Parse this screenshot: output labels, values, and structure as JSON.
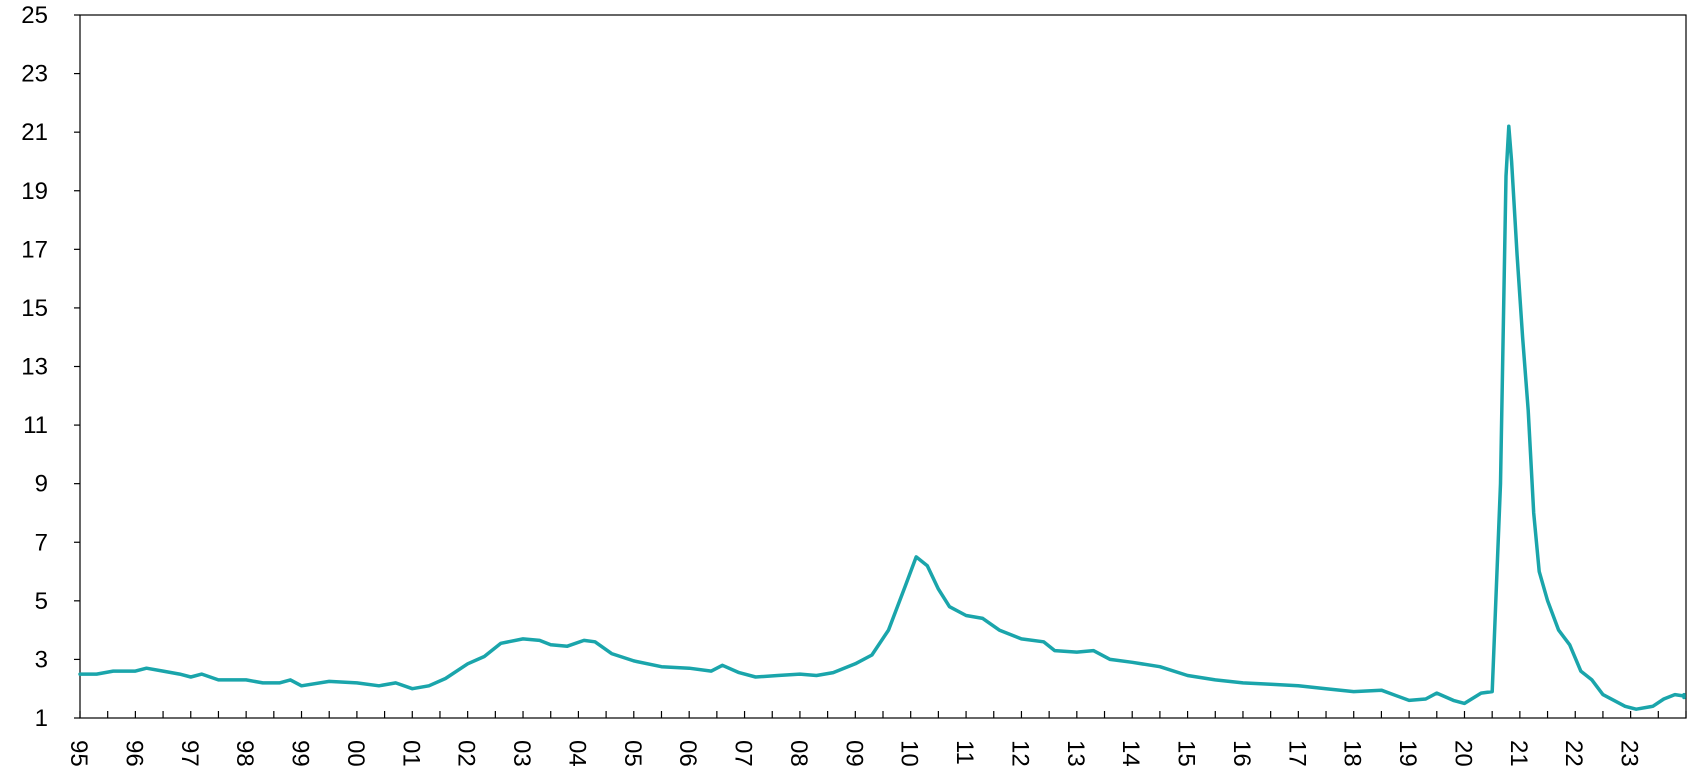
{
  "chart_data": {
    "type": "line",
    "title": "",
    "xlabel": "",
    "ylabel": "",
    "ylim": [
      1,
      25
    ],
    "y_ticks": [
      1,
      3,
      5,
      7,
      9,
      11,
      13,
      15,
      17,
      19,
      21,
      23,
      25
    ],
    "y_tick_labels": [
      "1",
      "3",
      "5",
      "7",
      "9",
      "11",
      "13",
      "15",
      "17",
      "19",
      "21",
      "23",
      "25"
    ],
    "xlim": [
      1995,
      2024.0
    ],
    "x_tick_labels": [
      "95",
      "96",
      "97",
      "98",
      "99",
      "00",
      "01",
      "02",
      "03",
      "04",
      "05",
      "06",
      "07",
      "08",
      "09",
      "10",
      "11",
      "12",
      "13",
      "14",
      "15",
      "16",
      "17",
      "18",
      "19",
      "20",
      "21",
      "22",
      "23"
    ],
    "x_tick_label_orientation": "rotated 90° clockwise",
    "grid": false,
    "line_color": "#1aa5ab",
    "series": [
      {
        "values": [
          [
            1995.0,
            2.5
          ],
          [
            1995.3,
            2.5
          ],
          [
            1995.6,
            2.6
          ],
          [
            1996.0,
            2.6
          ],
          [
            1996.2,
            2.7
          ],
          [
            1996.5,
            2.6
          ],
          [
            1996.8,
            2.5
          ],
          [
            1997.0,
            2.4
          ],
          [
            1997.2,
            2.5
          ],
          [
            1997.5,
            2.3
          ],
          [
            1998.0,
            2.3
          ],
          [
            1998.3,
            2.2
          ],
          [
            1998.6,
            2.2
          ],
          [
            1998.8,
            2.3
          ],
          [
            1999.0,
            2.1
          ],
          [
            1999.5,
            2.25
          ],
          [
            2000.0,
            2.2
          ],
          [
            2000.4,
            2.1
          ],
          [
            2000.7,
            2.2
          ],
          [
            2001.0,
            2.0
          ],
          [
            2001.3,
            2.1
          ],
          [
            2001.6,
            2.35
          ],
          [
            2002.0,
            2.85
          ],
          [
            2002.3,
            3.1
          ],
          [
            2002.6,
            3.55
          ],
          [
            2003.0,
            3.7
          ],
          [
            2003.3,
            3.65
          ],
          [
            2003.5,
            3.5
          ],
          [
            2003.8,
            3.45
          ],
          [
            2004.1,
            3.65
          ],
          [
            2004.3,
            3.6
          ],
          [
            2004.6,
            3.2
          ],
          [
            2005.0,
            2.95
          ],
          [
            2005.5,
            2.75
          ],
          [
            2006.0,
            2.7
          ],
          [
            2006.4,
            2.6
          ],
          [
            2006.6,
            2.8
          ],
          [
            2006.9,
            2.55
          ],
          [
            2007.2,
            2.4
          ],
          [
            2007.6,
            2.45
          ],
          [
            2008.0,
            2.5
          ],
          [
            2008.3,
            2.45
          ],
          [
            2008.6,
            2.55
          ],
          [
            2009.0,
            2.85
          ],
          [
            2009.3,
            3.15
          ],
          [
            2009.6,
            4.0
          ],
          [
            2009.9,
            5.5
          ],
          [
            2010.1,
            6.5
          ],
          [
            2010.3,
            6.2
          ],
          [
            2010.5,
            5.4
          ],
          [
            2010.7,
            4.8
          ],
          [
            2011.0,
            4.5
          ],
          [
            2011.3,
            4.4
          ],
          [
            2011.6,
            4.0
          ],
          [
            2012.0,
            3.7
          ],
          [
            2012.4,
            3.6
          ],
          [
            2012.6,
            3.3
          ],
          [
            2013.0,
            3.25
          ],
          [
            2013.3,
            3.3
          ],
          [
            2013.6,
            3.0
          ],
          [
            2014.0,
            2.9
          ],
          [
            2014.5,
            2.75
          ],
          [
            2015.0,
            2.45
          ],
          [
            2015.5,
            2.3
          ],
          [
            2016.0,
            2.2
          ],
          [
            2016.5,
            2.15
          ],
          [
            2017.0,
            2.1
          ],
          [
            2017.5,
            2.0
          ],
          [
            2018.0,
            1.9
          ],
          [
            2018.5,
            1.95
          ],
          [
            2019.0,
            1.6
          ],
          [
            2019.3,
            1.65
          ],
          [
            2019.5,
            1.85
          ],
          [
            2019.8,
            1.6
          ],
          [
            2020.0,
            1.5
          ],
          [
            2020.3,
            1.85
          ],
          [
            2020.5,
            1.9
          ],
          [
            2020.65,
            9.0
          ],
          [
            2020.75,
            19.5
          ],
          [
            2020.8,
            21.2
          ],
          [
            2020.85,
            20.0
          ],
          [
            2020.95,
            16.8
          ],
          [
            2021.05,
            14.0
          ],
          [
            2021.15,
            11.5
          ],
          [
            2021.25,
            8.0
          ],
          [
            2021.35,
            6.0
          ],
          [
            2021.5,
            5.0
          ],
          [
            2021.7,
            4.0
          ],
          [
            2021.9,
            3.5
          ],
          [
            2022.1,
            2.6
          ],
          [
            2022.3,
            2.3
          ],
          [
            2022.5,
            1.8
          ],
          [
            2022.7,
            1.6
          ],
          [
            2022.9,
            1.4
          ],
          [
            2023.1,
            1.3
          ],
          [
            2023.4,
            1.4
          ],
          [
            2023.6,
            1.65
          ],
          [
            2023.8,
            1.8
          ],
          [
            2024.0,
            1.75
          ],
          [
            2024.2,
            1.7
          ],
          [
            2024.4,
            1.8
          ]
        ]
      }
    ]
  }
}
